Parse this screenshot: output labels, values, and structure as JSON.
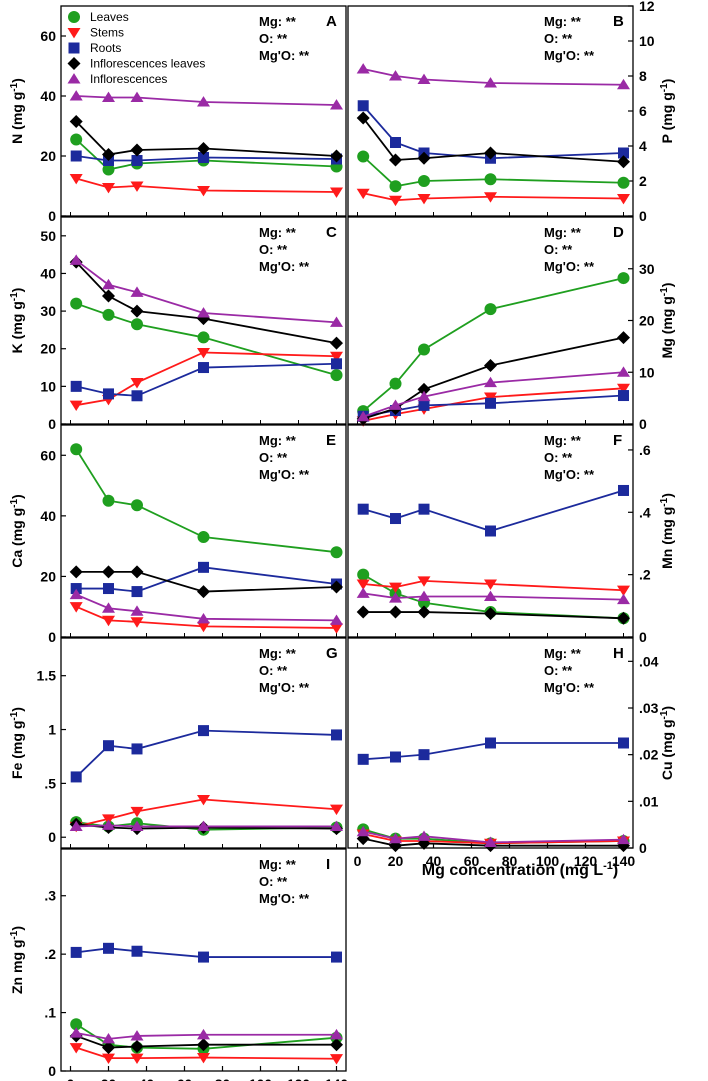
{
  "legend": [
    {
      "name": "Leaves",
      "color": "#1f9f1f",
      "marker": "circle"
    },
    {
      "name": "Stems",
      "color": "#ff1a1a",
      "marker": "triangle-down"
    },
    {
      "name": "Roots",
      "color": "#1c2a9c",
      "marker": "square"
    },
    {
      "name": "Inflorescences leaves",
      "color": "#000000",
      "marker": "diamond"
    },
    {
      "name": "Inflorescences",
      "color": "#9a2aa5",
      "marker": "triangle-up"
    }
  ],
  "x_axis": {
    "label": "Mg concentration (mg L",
    "label_sup": "-1",
    "label_end": ")",
    "ticks": [
      0,
      20,
      40,
      60,
      80,
      100,
      120,
      140
    ],
    "range": [
      -5,
      145
    ]
  },
  "chart_data": [
    {
      "panel": "A",
      "type": "line",
      "ylabel": "N (mg g",
      "ylabel_sup": "-1",
      "ylabel_end": ")",
      "yaxis_side": "left",
      "ylim": [
        0,
        70
      ],
      "yticks": [
        0,
        20,
        40,
        60
      ],
      "stats": [
        "Mg: **",
        "O: **",
        "Mg'O: **"
      ],
      "x": [
        3,
        20,
        35,
        70,
        140
      ],
      "series": [
        {
          "name": "Leaves",
          "values": [
            25.5,
            15.5,
            17.5,
            18.5,
            16.5
          ]
        },
        {
          "name": "Stems",
          "values": [
            12.5,
            9.5,
            10,
            8.5,
            8
          ]
        },
        {
          "name": "Roots",
          "values": [
            20,
            18.5,
            18.5,
            19.5,
            19
          ]
        },
        {
          "name": "Inflorescences leaves",
          "values": [
            31.5,
            20.5,
            22,
            22.5,
            20
          ]
        },
        {
          "name": "Inflorescences",
          "values": [
            40,
            39.5,
            39.5,
            38,
            37
          ]
        }
      ]
    },
    {
      "panel": "B",
      "type": "line",
      "ylabel": "P (mg g",
      "ylabel_sup": "-1",
      "ylabel_end": ")",
      "yaxis_side": "right",
      "ylim": [
        0,
        12
      ],
      "yticks": [
        0,
        2,
        4,
        6,
        8,
        10,
        12
      ],
      "stats": [
        "Mg: **",
        "O: **",
        "Mg'O: **"
      ],
      "x": [
        3,
        20,
        35,
        70,
        140
      ],
      "series": [
        {
          "name": "Leaves",
          "values": [
            3.4,
            1.7,
            2,
            2.1,
            1.9
          ]
        },
        {
          "name": "Stems",
          "values": [
            1.3,
            0.9,
            1,
            1.1,
            1
          ]
        },
        {
          "name": "Roots",
          "values": [
            6.3,
            4.2,
            3.6,
            3.3,
            3.6
          ]
        },
        {
          "name": "Inflorescences leaves",
          "values": [
            5.6,
            3.2,
            3.3,
            3.6,
            3.1
          ]
        },
        {
          "name": "Inflorescences",
          "values": [
            8.4,
            8,
            7.8,
            7.6,
            7.5
          ]
        }
      ]
    },
    {
      "panel": "C",
      "type": "line",
      "ylabel": "K (mg g",
      "ylabel_sup": "-1",
      "ylabel_end": ")",
      "yaxis_side": "left",
      "ylim": [
        0,
        55
      ],
      "yticks": [
        0,
        10,
        20,
        30,
        40,
        50
      ],
      "stats": [
        "Mg: **",
        "O: **",
        "Mg'O: **"
      ],
      "x": [
        3,
        20,
        35,
        70,
        140
      ],
      "series": [
        {
          "name": "Leaves",
          "values": [
            32,
            29,
            26.5,
            23,
            13
          ]
        },
        {
          "name": "Stems",
          "values": [
            5,
            6.5,
            11,
            19,
            18
          ]
        },
        {
          "name": "Roots",
          "values": [
            10,
            8,
            7.5,
            15,
            16
          ]
        },
        {
          "name": "Inflorescences leaves",
          "values": [
            43,
            34,
            30,
            28,
            21.5
          ]
        },
        {
          "name": "Inflorescences",
          "values": [
            43.5,
            37,
            35,
            29.5,
            27
          ]
        }
      ]
    },
    {
      "panel": "D",
      "type": "line",
      "ylabel": "Mg (mg g",
      "ylabel_sup": "-1",
      "ylabel_end": ")",
      "yaxis_side": "right",
      "ylim": [
        0,
        40
      ],
      "yticks": [
        0,
        10,
        20,
        30
      ],
      "stats": [
        "Mg: **",
        "O: **",
        "Mg'O: **"
      ],
      "x": [
        3,
        20,
        35,
        70,
        140
      ],
      "series": [
        {
          "name": "Leaves",
          "values": [
            2.5,
            7.8,
            14.4,
            22.2,
            28.2
          ]
        },
        {
          "name": "Stems",
          "values": [
            0.6,
            1.9,
            2.9,
            5.2,
            6.9
          ]
        },
        {
          "name": "Roots",
          "values": [
            1.5,
            2.6,
            3.6,
            4,
            5.5
          ]
        },
        {
          "name": "Inflorescences leaves",
          "values": [
            1,
            3,
            6.7,
            11.3,
            16.7
          ]
        },
        {
          "name": "Inflorescences",
          "values": [
            1.4,
            3.6,
            5.3,
            8,
            10
          ]
        }
      ]
    },
    {
      "panel": "E",
      "type": "line",
      "ylabel": "Ca (mg g",
      "ylabel_sup": "-1",
      "ylabel_end": ")",
      "yaxis_side": "left",
      "ylim": [
        0,
        70
      ],
      "yticks": [
        0,
        20,
        40,
        60
      ],
      "stats": [
        "Mg: **",
        "O: **",
        "Mg'O: **"
      ],
      "x": [
        3,
        20,
        35,
        70,
        140
      ],
      "series": [
        {
          "name": "Leaves",
          "values": [
            62,
            45,
            43.5,
            33,
            28
          ]
        },
        {
          "name": "Stems",
          "values": [
            10,
            5.5,
            5,
            3.5,
            3
          ]
        },
        {
          "name": "Roots",
          "values": [
            16,
            16,
            15,
            23,
            17.5
          ]
        },
        {
          "name": "Inflorescences leaves",
          "values": [
            21.5,
            21.5,
            21.5,
            15,
            16.5
          ]
        },
        {
          "name": "Inflorescences",
          "values": [
            14,
            9.5,
            8.5,
            6,
            5.5
          ]
        }
      ]
    },
    {
      "panel": "F",
      "type": "line",
      "ylabel": "Mn (mg g",
      "ylabel_sup": "-1",
      "ylabel_end": ")",
      "yaxis_side": "right",
      "ylim": [
        0,
        0.68
      ],
      "yticks": [
        0,
        0.2,
        0.4,
        0.6
      ],
      "stats": [
        "Mg: **",
        "O: **",
        "Mg'O: **"
      ],
      "x": [
        3,
        20,
        35,
        70,
        140
      ],
      "series": [
        {
          "name": "Leaves",
          "values": [
            0.2,
            0.14,
            0.11,
            0.08,
            0.06
          ]
        },
        {
          "name": "Stems",
          "values": [
            0.17,
            0.16,
            0.18,
            0.17,
            0.15
          ]
        },
        {
          "name": "Roots",
          "values": [
            0.41,
            0.38,
            0.41,
            0.34,
            0.47
          ]
        },
        {
          "name": "Inflorescences leaves",
          "values": [
            0.08,
            0.08,
            0.08,
            0.075,
            0.06
          ]
        },
        {
          "name": "Inflorescences",
          "values": [
            0.14,
            0.125,
            0.13,
            0.13,
            0.12
          ]
        }
      ]
    },
    {
      "panel": "G",
      "type": "line",
      "ylabel": "Fe (mg g",
      "ylabel_sup": "-1",
      "ylabel_end": ")",
      "yaxis_side": "left",
      "ylim": [
        -0.1,
        1.85
      ],
      "yticks": [
        0,
        0.5,
        1,
        1.5
      ],
      "stats": [
        "Mg: **",
        "O: **",
        "Mg'O: **"
      ],
      "x": [
        3,
        20,
        35,
        70,
        140
      ],
      "series": [
        {
          "name": "Leaves",
          "values": [
            0.14,
            0.1,
            0.13,
            0.07,
            0.09
          ]
        },
        {
          "name": "Stems",
          "values": [
            0.1,
            0.17,
            0.24,
            0.35,
            0.26
          ]
        },
        {
          "name": "Roots",
          "values": [
            0.56,
            0.85,
            0.82,
            0.99,
            0.95
          ]
        },
        {
          "name": "Inflorescences leaves",
          "values": [
            0.12,
            0.09,
            0.08,
            0.09,
            0.08
          ]
        },
        {
          "name": "Inflorescences",
          "values": [
            0.1,
            0.11,
            0.1,
            0.1,
            0.1
          ]
        }
      ]
    },
    {
      "panel": "H",
      "type": "line",
      "ylabel": "Cu (mg g",
      "ylabel_sup": "-1",
      "ylabel_end": ")",
      "yaxis_side": "right",
      "ylim": [
        0,
        0.045
      ],
      "yticks": [
        0,
        0.01,
        0.02,
        0.03,
        0.04
      ],
      "stats": [
        "Mg: **",
        "O: **",
        "Mg'O: **"
      ],
      "x": [
        3,
        20,
        35,
        70,
        140
      ],
      "series": [
        {
          "name": "Leaves",
          "values": [
            0.004,
            0.002,
            0.002,
            0.001,
            0.0015
          ]
        },
        {
          "name": "Stems",
          "values": [
            0.003,
            0.0015,
            0.0015,
            0.001,
            0.0015
          ]
        },
        {
          "name": "Roots",
          "values": [
            0.019,
            0.0195,
            0.02,
            0.0225,
            0.0225
          ]
        },
        {
          "name": "Inflorescences leaves",
          "values": [
            0.002,
            0.0005,
            0.001,
            0.0005,
            0.0005
          ]
        },
        {
          "name": "Inflorescences",
          "values": [
            0.0035,
            0.002,
            0.0025,
            0.0012,
            0.0018
          ]
        }
      ]
    },
    {
      "panel": "I",
      "type": "line",
      "ylabel": "Zn mg g",
      "ylabel_sup": "-1",
      "ylabel_end": ")",
      "yaxis_side": "left",
      "ylim": [
        0,
        0.38
      ],
      "yticks": [
        0,
        0.1,
        0.2,
        0.3
      ],
      "stats": [
        "Mg: **",
        "O: **",
        "Mg'O: **"
      ],
      "x": [
        3,
        20,
        35,
        70,
        140
      ],
      "series": [
        {
          "name": "Leaves",
          "values": [
            0.08,
            0.045,
            0.04,
            0.038,
            0.057
          ]
        },
        {
          "name": "Stems",
          "values": [
            0.04,
            0.022,
            0.022,
            0.023,
            0.021
          ]
        },
        {
          "name": "Roots",
          "values": [
            0.203,
            0.21,
            0.205,
            0.195,
            0.195
          ]
        },
        {
          "name": "Inflorescences leaves",
          "values": [
            0.06,
            0.04,
            0.042,
            0.045,
            0.045
          ]
        },
        {
          "name": "Inflorescences",
          "values": [
            0.065,
            0.055,
            0.06,
            0.062,
            0.062
          ]
        }
      ]
    }
  ]
}
